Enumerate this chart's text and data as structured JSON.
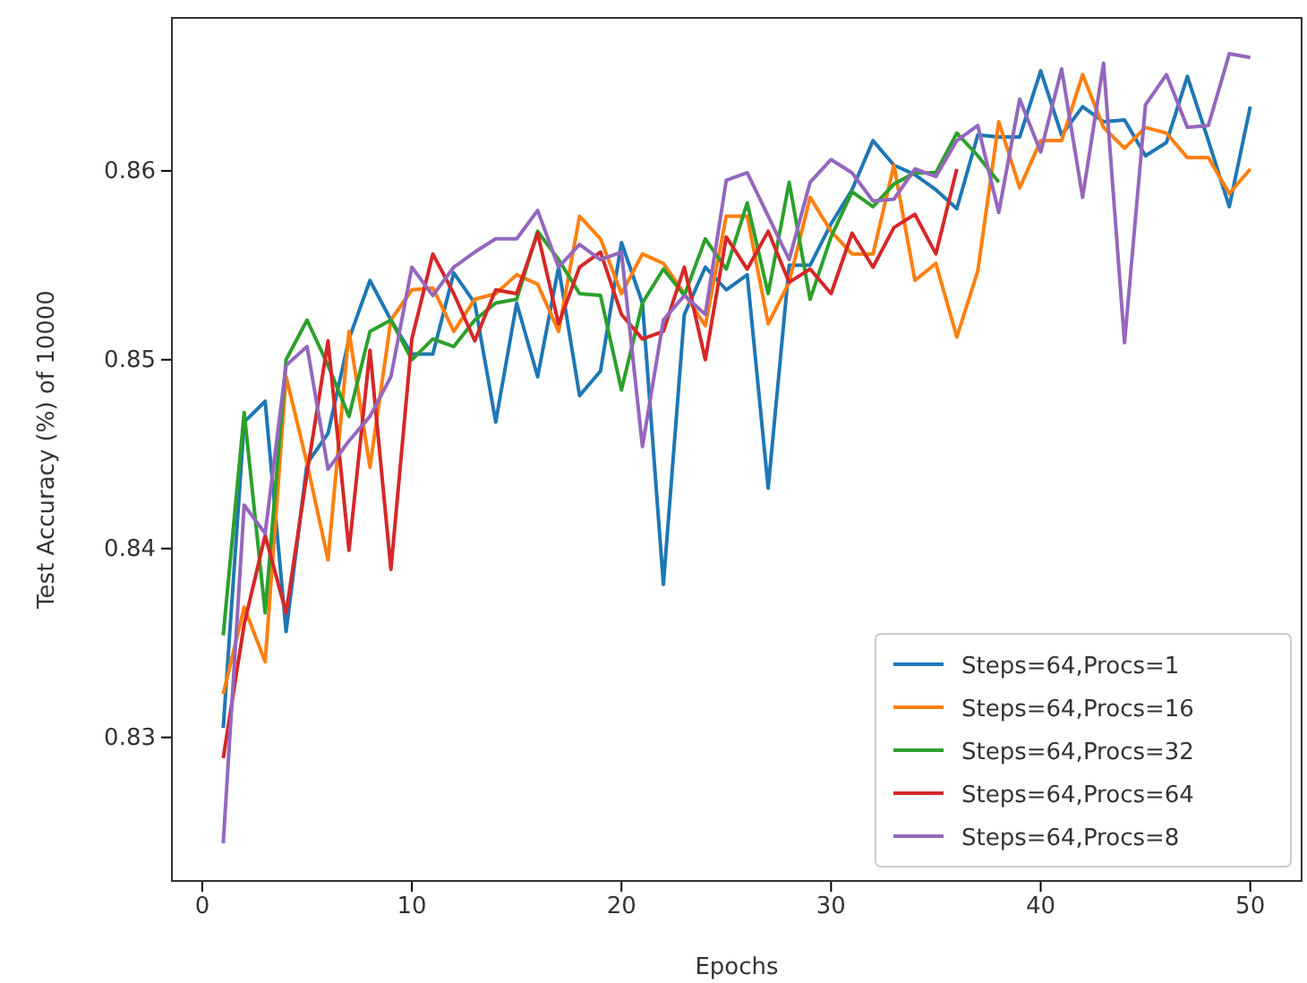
{
  "chart_data": {
    "type": "line",
    "xlabel": "Epochs",
    "ylabel": "Test Accuracy (%) of 10000",
    "xlim": [
      -1.45,
      52.45
    ],
    "xticks": [
      0,
      10,
      20,
      30,
      40,
      50
    ],
    "ylim": [
      0.8224,
      0.8681
    ],
    "yticks": [
      0.83,
      0.84,
      0.85,
      0.86
    ],
    "grid": false,
    "legend": "bottom right",
    "line_style": "solid",
    "marker": "none",
    "x": [
      1,
      2,
      3,
      4,
      5,
      6,
      7,
      8,
      9,
      10,
      11,
      12,
      13,
      14,
      15,
      16,
      17,
      18,
      19,
      20,
      21,
      22,
      23,
      24,
      25,
      26,
      27,
      28,
      29,
      30,
      31,
      32,
      33,
      34,
      35,
      36,
      37,
      38,
      39,
      40,
      41,
      42,
      43,
      44,
      45,
      46,
      47,
      48,
      49,
      50
    ],
    "series": [
      {
        "name": "Steps=64,Procs=1",
        "color": "#1f77b4",
        "values": [
          0.8305,
          0.8467,
          0.8478,
          0.8356,
          0.8445,
          0.8461,
          0.8511,
          0.8542,
          0.8521,
          0.8503,
          0.8503,
          0.8546,
          0.853,
          0.8467,
          0.853,
          0.8491,
          0.8549,
          0.8481,
          0.8494,
          0.8562,
          0.853,
          0.8381,
          0.8524,
          0.8549,
          0.8537,
          0.8545,
          0.8432,
          0.855,
          0.855,
          0.8572,
          0.859,
          0.8616,
          0.8603,
          0.8598,
          0.859,
          0.858,
          0.8619,
          0.8618,
          0.8618,
          0.8653,
          0.8619,
          0.8634,
          0.8626,
          0.8627,
          0.8608,
          0.8615,
          0.865,
          0.8616,
          0.8581,
          0.8634
        ]
      },
      {
        "name": "Steps=64,Procs=16",
        "color": "#ff7f0e",
        "values": [
          0.8323,
          0.8369,
          0.834,
          0.8491,
          0.8445,
          0.8394,
          0.8515,
          0.8443,
          0.8521,
          0.8537,
          0.8538,
          0.8515,
          0.8532,
          0.8535,
          0.8545,
          0.854,
          0.8515,
          0.8576,
          0.8564,
          0.8535,
          0.8556,
          0.8551,
          0.8535,
          0.8518,
          0.8576,
          0.8576,
          0.8519,
          0.8541,
          0.8586,
          0.8568,
          0.8556,
          0.8556,
          0.8603,
          0.8542,
          0.8551,
          0.8512,
          0.8547,
          0.8626,
          0.8591,
          0.8616,
          0.8616,
          0.8651,
          0.8623,
          0.8612,
          0.8623,
          0.862,
          0.8607,
          0.8607,
          0.8588,
          0.8601
        ]
      },
      {
        "name": "Steps=64,Procs=32",
        "color": "#2ca02c",
        "values": [
          0.8354,
          0.8472,
          0.8366,
          0.85,
          0.8521,
          0.8497,
          0.847,
          0.8515,
          0.8521,
          0.85,
          0.8511,
          0.8507,
          0.8521,
          0.853,
          0.8532,
          0.8568,
          0.8553,
          0.8535,
          0.8534,
          0.8484,
          0.853,
          0.8548,
          0.8534,
          0.8564,
          0.8548,
          0.8583,
          0.8535,
          0.8594,
          0.8532,
          0.8565,
          0.8589,
          0.8581,
          0.8593,
          0.8599,
          0.8599,
          0.862,
          0.8608,
          0.8594,
          null,
          null,
          null,
          null,
          null,
          null,
          null,
          null,
          null,
          null,
          null,
          null
        ]
      },
      {
        "name": "Steps=64,Procs=64",
        "color": "#d62728",
        "values": [
          0.8289,
          0.836,
          0.8407,
          0.8366,
          0.844,
          0.851,
          0.8399,
          0.8505,
          0.8389,
          0.8511,
          0.8556,
          0.8535,
          0.851,
          0.8537,
          0.8535,
          0.8567,
          0.8519,
          0.8549,
          0.8557,
          0.8524,
          0.8511,
          0.8515,
          0.8549,
          0.85,
          0.8565,
          0.8548,
          0.8568,
          0.8541,
          0.8548,
          0.8535,
          0.8567,
          0.8549,
          0.857,
          0.8577,
          0.8556,
          0.8601,
          null,
          null,
          null,
          null,
          null,
          null,
          null,
          null,
          null,
          null,
          null,
          null,
          null,
          null
        ]
      },
      {
        "name": "Steps=64,Procs=8",
        "color": "#9467bd",
        "values": [
          0.8244,
          0.8423,
          0.8408,
          0.8497,
          0.8507,
          0.8442,
          0.8457,
          0.847,
          0.8491,
          0.8549,
          0.8534,
          0.8549,
          0.8557,
          0.8564,
          0.8564,
          0.8579,
          0.8549,
          0.8561,
          0.8553,
          0.8557,
          0.8454,
          0.8521,
          0.8534,
          0.8524,
          0.8595,
          0.8599,
          0.8576,
          0.8553,
          0.8594,
          0.8606,
          0.8599,
          0.8584,
          0.8585,
          0.8601,
          0.8597,
          0.8616,
          0.8624,
          0.8578,
          0.8638,
          0.861,
          0.8654,
          0.8586,
          0.8657,
          0.8509,
          0.8635,
          0.8651,
          0.8623,
          0.8624,
          0.8662,
          0.866
        ]
      }
    ]
  }
}
